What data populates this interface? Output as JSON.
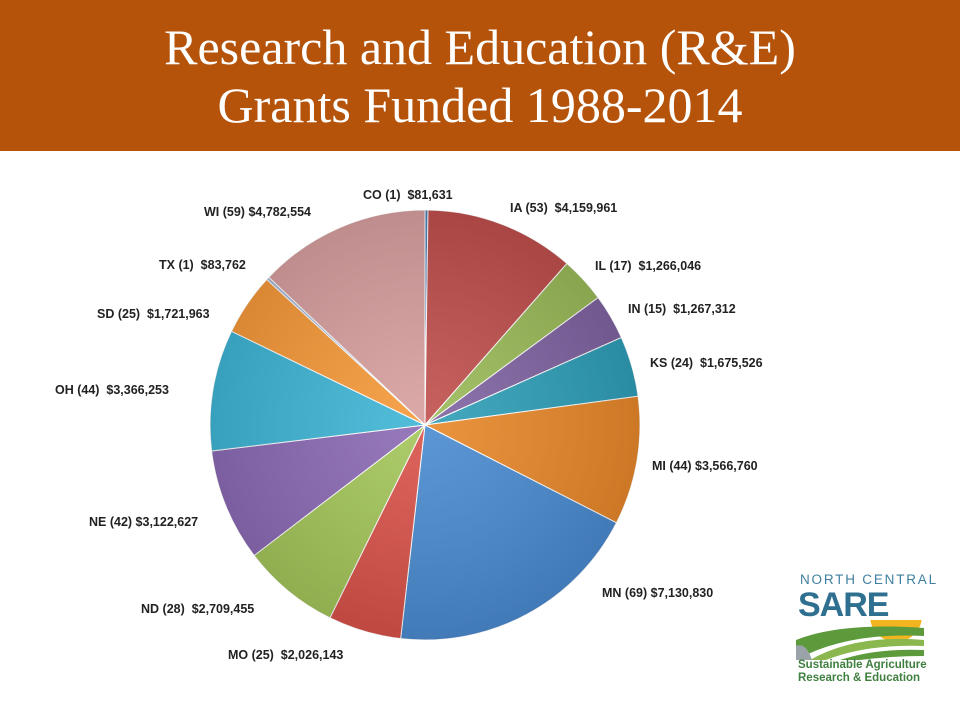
{
  "header": {
    "title_line1": "Research and Education (R&E)",
    "title_line2": "Grants Funded 1988-2014",
    "background": "#b5530b"
  },
  "chart_data": {
    "type": "pie",
    "title": "Research and Education (R&E) Grants Funded 1988-2014",
    "slices": [
      {
        "state": "CO",
        "grants": 1,
        "amount": 81631,
        "label": "CO (1)  $81,631",
        "color": "#4f81bd"
      },
      {
        "state": "IA",
        "grants": 53,
        "amount": 4159961,
        "label": "IA (53)  $4,159,961",
        "color": "#c0504d"
      },
      {
        "state": "IL",
        "grants": 17,
        "amount": 1266046,
        "label": "IL (17)  $1,266,046",
        "color": "#9bbb59"
      },
      {
        "state": "IN",
        "grants": 15,
        "amount": 1267312,
        "label": "IN (15)  $1,267,312",
        "color": "#8064a2"
      },
      {
        "state": "KS",
        "grants": 24,
        "amount": 1675526,
        "label": "KS (24)  $1,675,526",
        "color": "#2f9fb8"
      },
      {
        "state": "MI",
        "grants": 44,
        "amount": 3566760,
        "label": "MI (44) $3,566,760",
        "color": "#e8882a"
      },
      {
        "state": "MN",
        "grants": 69,
        "amount": 7130830,
        "label": "MN (69) $7,130,830",
        "color": "#4a8bd0"
      },
      {
        "state": "MO",
        "grants": 25,
        "amount": 2026143,
        "label": "MO (25)  $2,026,143",
        "color": "#d9534a"
      },
      {
        "state": "ND",
        "grants": 28,
        "amount": 2709455,
        "label": "ND (28)  $2,709,455",
        "color": "#a4c65a"
      },
      {
        "state": "NE",
        "grants": 42,
        "amount": 3122627,
        "label": "NE (42) $3,122,627",
        "color": "#8c6bb5"
      },
      {
        "state": "OH",
        "grants": 44,
        "amount": 3366253,
        "label": "OH (44)  $3,366,253",
        "color": "#3fb6d6"
      },
      {
        "state": "SD",
        "grants": 25,
        "amount": 1721963,
        "label": "SD (25)  $1,721,963",
        "color": "#f79a3a"
      },
      {
        "state": "TX",
        "grants": 1,
        "amount": 83762,
        "label": "TX (1)  $83,762",
        "color": "#a7b9d9"
      },
      {
        "state": "WI",
        "grants": 59,
        "amount": 4782554,
        "label": "WI (59) $4,782,554",
        "color": "#d9a0a0"
      }
    ],
    "legend": "none",
    "data_labels": "outside"
  },
  "logo": {
    "line1": "NORTH CENTRAL",
    "wordmark": "SARE",
    "tagline1": "Sustainable Agriculture",
    "tagline2": "Research & Education"
  }
}
